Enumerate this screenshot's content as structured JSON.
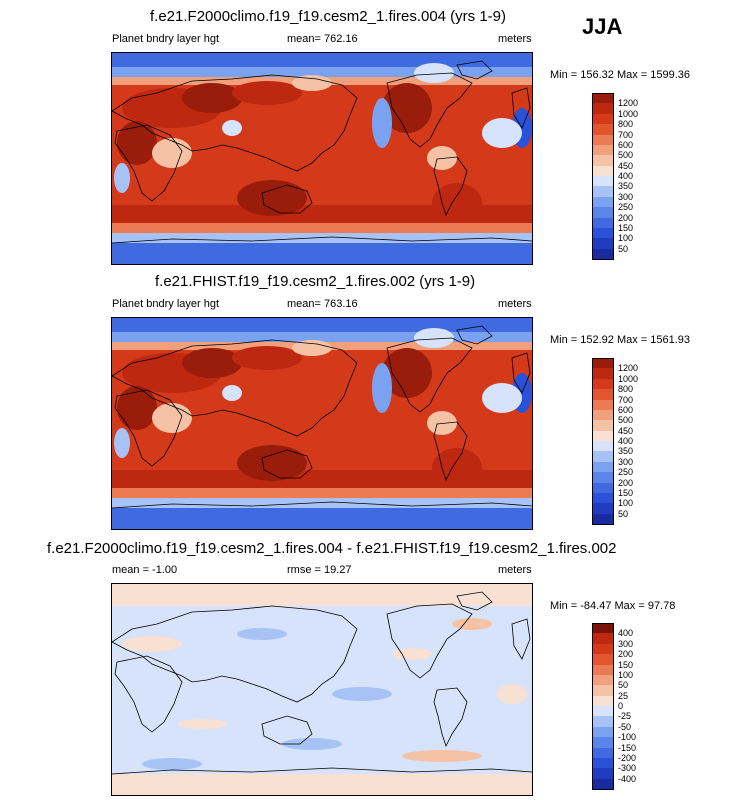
{
  "season": "JJA",
  "colors": {
    "main": [
      "#1a2aa0",
      "#1f3bbf",
      "#2a52d8",
      "#3f6ae0",
      "#5a86ea",
      "#7aa2f0",
      "#a7c3f6",
      "#d6e3fb",
      "#f8e0d2",
      "#f6c2a6",
      "#f2a07c",
      "#ec7a52",
      "#e2552e",
      "#d4391a",
      "#be2810",
      "#9a1c0a",
      "#7a1208"
    ],
    "diff": [
      "#1a2aa0",
      "#1f3bbf",
      "#2a52d8",
      "#3f6ae0",
      "#5a86ea",
      "#7aa2f0",
      "#a7c3f6",
      "#d6e3fb",
      "#f8e0d2",
      "#f6c2a6",
      "#f2a07c",
      "#ec7a52",
      "#e2552e",
      "#d4391a",
      "#be2810",
      "#7a1208"
    ]
  },
  "panels": [
    {
      "title": "f.e21.F2000climo.f19_f19.cesm2_1.fires.004 (yrs 1-9)",
      "var_name": "Planet bndry layer hgt",
      "stat": "mean= 762.16",
      "units": "meters",
      "minmax": "Min = 156.32 Max = 1599.36",
      "levels": [
        "1200",
        "1000",
        "800",
        "700",
        "600",
        "500",
        "450",
        "400",
        "350",
        "300",
        "250",
        "200",
        "150",
        "100",
        "50"
      ]
    },
    {
      "title": "f.e21.FHIST.f19_f19.cesm2_1.fires.002 (yrs 1-9)",
      "var_name": "Planet bndry layer hgt",
      "stat": "mean= 763.16",
      "units": "meters",
      "minmax": "Min = 152.92 Max = 1561.93",
      "levels": [
        "1200",
        "1000",
        "800",
        "700",
        "600",
        "500",
        "450",
        "400",
        "350",
        "300",
        "250",
        "200",
        "150",
        "100",
        "50"
      ]
    },
    {
      "title": "f.e21.F2000climo.f19_f19.cesm2_1.fires.004 - f.e21.FHIST.f19_f19.cesm2_1.fires.002",
      "var_name": "mean =  -1.00",
      "stat": "rmse =  19.27",
      "units": "meters",
      "minmax": "Min = -84.47 Max =  97.78",
      "levels": [
        "400",
        "300",
        "200",
        "150",
        "100",
        "50",
        "25",
        "0",
        "-25",
        "-50",
        "-100",
        "-150",
        "-200",
        "-300",
        "-400"
      ]
    }
  ],
  "chart_data": [
    {
      "type": "heatmap",
      "title": "f.e21.F2000climo.f19_f19.cesm2_1.fires.004 (yrs 1-9)",
      "variable": "Planet bndry layer hgt",
      "units": "meters",
      "mean": 762.16,
      "min": 156.32,
      "max": 1599.36,
      "contour_levels": [
        50,
        100,
        150,
        200,
        250,
        300,
        350,
        400,
        450,
        500,
        600,
        700,
        800,
        1000,
        1200
      ]
    },
    {
      "type": "heatmap",
      "title": "f.e21.FHIST.f19_f19.cesm2_1.fires.002 (yrs 1-9)",
      "variable": "Planet bndry layer hgt",
      "units": "meters",
      "mean": 763.16,
      "min": 152.92,
      "max": 1561.93,
      "contour_levels": [
        50,
        100,
        150,
        200,
        250,
        300,
        350,
        400,
        450,
        500,
        600,
        700,
        800,
        1000,
        1200
      ]
    },
    {
      "type": "heatmap",
      "title": "f.e21.F2000climo.f19_f19.cesm2_1.fires.004 - f.e21.FHIST.f19_f19.cesm2_1.fires.002",
      "units": "meters",
      "mean": -1.0,
      "rmse": 19.27,
      "min": -84.47,
      "max": 97.78,
      "contour_levels": [
        -400,
        -300,
        -200,
        -150,
        -100,
        -50,
        -25,
        0,
        25,
        50,
        100,
        150,
        200,
        300,
        400
      ]
    }
  ]
}
